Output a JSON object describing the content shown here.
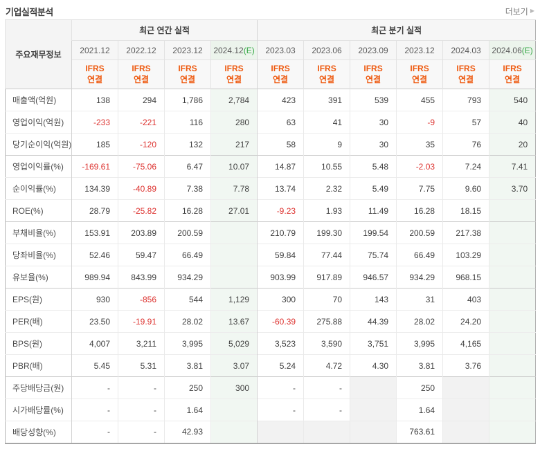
{
  "page_title": "기업실적분석",
  "more": {
    "label": "더보기",
    "arrow_icon": "▶"
  },
  "colors": {
    "negative_red": "#dd3330",
    "ifrs_orange": "#ee5a10",
    "estimate_green": "#36a846",
    "estimate_bg": "#f1f7f2",
    "disabled_gray": "#f2f2f2"
  },
  "table": {
    "corner_header": "주요재무정보",
    "section_headers": [
      {
        "label": "최근 연간 실적",
        "span": 4
      },
      {
        "label": "최근 분기 실적",
        "span": 6
      }
    ],
    "sub_header": {
      "line1": "IFRS",
      "line2": "연결"
    },
    "estimate_suffix": "(E)",
    "columns": [
      {
        "label": "2021.12",
        "estimate": false
      },
      {
        "label": "2022.12",
        "estimate": false
      },
      {
        "label": "2023.12",
        "estimate": false
      },
      {
        "label": "2024.12",
        "estimate": true
      },
      {
        "label": "2023.03",
        "estimate": false
      },
      {
        "label": "2023.06",
        "estimate": false
      },
      {
        "label": "2023.09",
        "estimate": false
      },
      {
        "label": "2023.12",
        "estimate": false
      },
      {
        "label": "2024.03",
        "estimate": false
      },
      {
        "label": "2024.06",
        "estimate": true
      }
    ],
    "rows": [
      {
        "label": "매출액(억원)",
        "cells": [
          {
            "v": "138"
          },
          {
            "v": "294"
          },
          {
            "v": "1,786"
          },
          {
            "v": "2,784"
          },
          {
            "v": "423"
          },
          {
            "v": "391"
          },
          {
            "v": "539"
          },
          {
            "v": "455"
          },
          {
            "v": "793"
          },
          {
            "v": "540"
          }
        ]
      },
      {
        "label": "영업이익(억원)",
        "cells": [
          {
            "v": "-233"
          },
          {
            "v": "-221"
          },
          {
            "v": "116"
          },
          {
            "v": "280"
          },
          {
            "v": "63"
          },
          {
            "v": "41"
          },
          {
            "v": "30"
          },
          {
            "v": "-9"
          },
          {
            "v": "57"
          },
          {
            "v": "40"
          }
        ]
      },
      {
        "label": "당기순이익(억원)",
        "cells": [
          {
            "v": "185"
          },
          {
            "v": "-120"
          },
          {
            "v": "132"
          },
          {
            "v": "217"
          },
          {
            "v": "58"
          },
          {
            "v": "9"
          },
          {
            "v": "30"
          },
          {
            "v": "35"
          },
          {
            "v": "76"
          },
          {
            "v": "20"
          }
        ]
      },
      {
        "label": "영업이익률(%)",
        "group_start": true,
        "cells": [
          {
            "v": "-169.61"
          },
          {
            "v": "-75.06"
          },
          {
            "v": "6.47"
          },
          {
            "v": "10.07"
          },
          {
            "v": "14.87"
          },
          {
            "v": "10.55"
          },
          {
            "v": "5.48"
          },
          {
            "v": "-2.03"
          },
          {
            "v": "7.24"
          },
          {
            "v": "7.41"
          }
        ]
      },
      {
        "label": "순이익률(%)",
        "cells": [
          {
            "v": "134.39"
          },
          {
            "v": "-40.89"
          },
          {
            "v": "7.38"
          },
          {
            "v": "7.78"
          },
          {
            "v": "13.74"
          },
          {
            "v": "2.32"
          },
          {
            "v": "5.49"
          },
          {
            "v": "7.75"
          },
          {
            "v": "9.60"
          },
          {
            "v": "3.70"
          }
        ]
      },
      {
        "label": "ROE(%)",
        "cells": [
          {
            "v": "28.79"
          },
          {
            "v": "-25.82"
          },
          {
            "v": "16.28"
          },
          {
            "v": "27.01"
          },
          {
            "v": "-9.23"
          },
          {
            "v": "1.93"
          },
          {
            "v": "11.49"
          },
          {
            "v": "16.28"
          },
          {
            "v": "18.15"
          },
          {
            "v": ""
          }
        ]
      },
      {
        "label": "부채비율(%)",
        "group_start": true,
        "cells": [
          {
            "v": "153.91"
          },
          {
            "v": "203.89"
          },
          {
            "v": "200.59"
          },
          {
            "v": ""
          },
          {
            "v": "210.79"
          },
          {
            "v": "199.30"
          },
          {
            "v": "199.54"
          },
          {
            "v": "200.59"
          },
          {
            "v": "217.38"
          },
          {
            "v": ""
          }
        ]
      },
      {
        "label": "당좌비율(%)",
        "cells": [
          {
            "v": "52.46"
          },
          {
            "v": "59.47"
          },
          {
            "v": "66.49"
          },
          {
            "v": ""
          },
          {
            "v": "59.84"
          },
          {
            "v": "77.44"
          },
          {
            "v": "75.74"
          },
          {
            "v": "66.49"
          },
          {
            "v": "103.29"
          },
          {
            "v": ""
          }
        ]
      },
      {
        "label": "유보율(%)",
        "cells": [
          {
            "v": "989.94"
          },
          {
            "v": "843.99"
          },
          {
            "v": "934.29"
          },
          {
            "v": ""
          },
          {
            "v": "903.99"
          },
          {
            "v": "917.89"
          },
          {
            "v": "946.57"
          },
          {
            "v": "934.29"
          },
          {
            "v": "968.15"
          },
          {
            "v": ""
          }
        ]
      },
      {
        "label": "EPS(원)",
        "group_start": true,
        "cells": [
          {
            "v": "930"
          },
          {
            "v": "-856"
          },
          {
            "v": "544"
          },
          {
            "v": "1,129"
          },
          {
            "v": "300"
          },
          {
            "v": "70"
          },
          {
            "v": "143"
          },
          {
            "v": "31"
          },
          {
            "v": "403"
          },
          {
            "v": ""
          }
        ]
      },
      {
        "label": "PER(배)",
        "cells": [
          {
            "v": "23.50"
          },
          {
            "v": "-19.91"
          },
          {
            "v": "28.02"
          },
          {
            "v": "13.67"
          },
          {
            "v": "-60.39"
          },
          {
            "v": "275.88"
          },
          {
            "v": "44.39"
          },
          {
            "v": "28.02"
          },
          {
            "v": "24.20"
          },
          {
            "v": ""
          }
        ]
      },
      {
        "label": "BPS(원)",
        "cells": [
          {
            "v": "4,007"
          },
          {
            "v": "3,211"
          },
          {
            "v": "3,995"
          },
          {
            "v": "5,029"
          },
          {
            "v": "3,523"
          },
          {
            "v": "3,590"
          },
          {
            "v": "3,751"
          },
          {
            "v": "3,995"
          },
          {
            "v": "4,165"
          },
          {
            "v": ""
          }
        ]
      },
      {
        "label": "PBR(배)",
        "cells": [
          {
            "v": "5.45"
          },
          {
            "v": "5.31"
          },
          {
            "v": "3.81"
          },
          {
            "v": "3.07"
          },
          {
            "v": "5.24"
          },
          {
            "v": "4.72"
          },
          {
            "v": "4.30"
          },
          {
            "v": "3.81"
          },
          {
            "v": "3.76"
          },
          {
            "v": ""
          }
        ]
      },
      {
        "label": "주당배당금(원)",
        "group_start": true,
        "cells": [
          {
            "v": "-"
          },
          {
            "v": "-"
          },
          {
            "v": "250"
          },
          {
            "v": "300"
          },
          {
            "v": "-"
          },
          {
            "v": "-"
          },
          {
            "v": "",
            "gray": true
          },
          {
            "v": "250"
          },
          {
            "v": "",
            "gray": true
          },
          {
            "v": ""
          }
        ]
      },
      {
        "label": "시가배당률(%)",
        "cells": [
          {
            "v": "-"
          },
          {
            "v": "-"
          },
          {
            "v": "1.64"
          },
          {
            "v": ""
          },
          {
            "v": "-"
          },
          {
            "v": "-"
          },
          {
            "v": "",
            "gray": true
          },
          {
            "v": "1.64"
          },
          {
            "v": "",
            "gray": true
          },
          {
            "v": ""
          }
        ]
      },
      {
        "label": "배당성향(%)",
        "cells": [
          {
            "v": "-"
          },
          {
            "v": "-"
          },
          {
            "v": "42.93"
          },
          {
            "v": ""
          },
          {
            "v": "",
            "gray": true
          },
          {
            "v": "",
            "gray": true
          },
          {
            "v": "",
            "gray": true
          },
          {
            "v": "763.61"
          },
          {
            "v": "",
            "gray": true
          },
          {
            "v": ""
          }
        ]
      }
    ]
  }
}
